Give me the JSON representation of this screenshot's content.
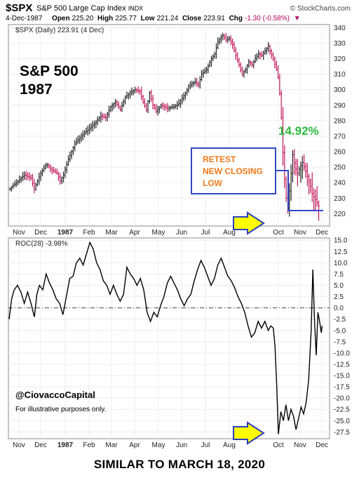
{
  "header": {
    "ticker": "$SPX",
    "index_name": "S&P 500 Large Cap Index",
    "exchange": "INDX",
    "brand": "© StockCharts.com",
    "date": "4-Dec-1987",
    "open_label": "Open",
    "open": "225.20",
    "high_label": "High",
    "high": "225.77",
    "low_label": "Low",
    "low": "221.24",
    "close_label": "Close",
    "close": "223.91",
    "chg_label": "Chg",
    "chg": "-1.30 (-0.58%)"
  },
  "colors": {
    "up": "#222222",
    "down": "#c2185b",
    "green": "#2db83d",
    "orange": "#f07a1a",
    "box": "#3247c7",
    "arrow_fill": "#ffff00",
    "arrow_stroke": "#2b3fbf"
  },
  "chart_data": [
    {
      "type": "ohlc",
      "legend": "$SPX (Daily) 223.91 (4 Dec)",
      "title": "S&P 500",
      "subtitle": "1987",
      "annotation_pct": "14.92%",
      "annotation_box": "RETEST NEW CLOSING LOW",
      "annotation_box_lines": [
        "RETEST",
        "NEW CLOSING",
        "LOW"
      ],
      "ylim": [
        212,
        342
      ],
      "yticks": [
        220,
        230,
        240,
        250,
        260,
        270,
        280,
        290,
        300,
        310,
        320,
        330,
        340
      ],
      "xticks": [
        "Nov",
        "Dec",
        "1987",
        "Feb",
        "Mar",
        "Apr",
        "May",
        "Jun",
        "Jul",
        "Aug",
        "Oct",
        "Nov",
        "Dec"
      ],
      "close_path": [
        [
          0,
          236
        ],
        [
          8,
          240
        ],
        [
          18,
          245
        ],
        [
          26,
          243
        ],
        [
          30,
          236
        ],
        [
          38,
          246
        ],
        [
          45,
          252
        ],
        [
          52,
          248
        ],
        [
          58,
          246
        ],
        [
          62,
          241
        ],
        [
          66,
          245
        ],
        [
          72,
          255
        ],
        [
          80,
          265
        ],
        [
          88,
          270
        ],
        [
          98,
          275
        ],
        [
          106,
          279
        ],
        [
          112,
          283
        ],
        [
          118,
          282
        ],
        [
          124,
          289
        ],
        [
          130,
          292
        ],
        [
          136,
          287
        ],
        [
          142,
          295
        ],
        [
          148,
          298
        ],
        [
          154,
          300
        ],
        [
          160,
          299
        ],
        [
          164,
          292
        ],
        [
          168,
          287
        ],
        [
          172,
          298
        ],
        [
          176,
          290
        ],
        [
          180,
          286
        ],
        [
          186,
          290
        ],
        [
          194,
          288
        ],
        [
          202,
          289
        ],
        [
          208,
          291
        ],
        [
          214,
          296
        ],
        [
          220,
          302
        ],
        [
          224,
          304
        ],
        [
          228,
          305
        ],
        [
          232,
          303
        ],
        [
          236,
          310
        ],
        [
          242,
          313
        ],
        [
          248,
          320
        ],
        [
          252,
          323
        ],
        [
          256,
          331
        ],
        [
          260,
          334
        ],
        [
          262,
          335
        ],
        [
          266,
          332
        ],
        [
          270,
          333
        ],
        [
          274,
          329
        ],
        [
          278,
          322
        ],
        [
          282,
          316
        ],
        [
          286,
          310
        ],
        [
          290,
          313
        ],
        [
          294,
          318
        ],
        [
          298,
          316
        ],
        [
          302,
          320
        ],
        [
          306,
          323
        ],
        [
          310,
          322
        ],
        [
          314,
          325
        ],
        [
          318,
          328
        ],
        [
          320,
          325
        ],
        [
          324,
          320
        ],
        [
          328,
          313
        ],
        [
          331,
          305
        ],
        [
          334,
          282
        ],
        [
          337,
          248
        ],
        [
          340,
          230
        ],
        [
          342,
          224
        ],
        [
          345,
          240
        ],
        [
          348,
          258
        ],
        [
          351,
          250
        ],
        [
          354,
          246
        ],
        [
          357,
          250
        ],
        [
          360,
          253
        ],
        [
          363,
          249
        ],
        [
          366,
          244
        ],
        [
          369,
          240
        ],
        [
          372,
          233
        ],
        [
          375,
          230
        ],
        [
          378,
          227
        ],
        [
          381,
          224
        ]
      ]
    },
    {
      "type": "line",
      "legend": "ROC(28) -3.98%",
      "ylim": [
        -29,
        15.5
      ],
      "yticks": [
        15.0,
        12.5,
        10.0,
        7.5,
        5.0,
        2.5,
        0.0,
        -2.5,
        -5.0,
        -7.5,
        -10.0,
        -12.5,
        -15.0,
        -17.5,
        -20.0,
        -22.5,
        -25.0,
        -27.5
      ],
      "ytick_labels": [
        "15.0",
        "12.5",
        "10.0",
        "7.5",
        "5.0",
        "2.5",
        "0.0",
        "-2.5",
        "-5.0",
        "-7.5",
        "-10.0",
        "-12.5",
        "-15.0",
        "-17.5",
        "-20.0",
        "-22.5",
        "-25.0",
        "-27.5"
      ],
      "xticks": [
        "Nov",
        "Dec",
        "1987",
        "Feb",
        "Mar",
        "Apr",
        "May",
        "Jun",
        "Jul",
        "Aug",
        "Oct",
        "Nov",
        "Dec"
      ],
      "series": [
        {
          "values": [
            [
              0,
              -2.5
            ],
            [
              3,
              2.0
            ],
            [
              6,
              4.0
            ],
            [
              10,
              5.0
            ],
            [
              14,
              3.5
            ],
            [
              18,
              1.0
            ],
            [
              22,
              3.5
            ],
            [
              26,
              1.0
            ],
            [
              30,
              -2.0
            ],
            [
              33,
              3.0
            ],
            [
              36,
              5.0
            ],
            [
              40,
              4.0
            ],
            [
              44,
              7.5
            ],
            [
              48,
              5.5
            ],
            [
              52,
              4.0
            ],
            [
              56,
              2.0
            ],
            [
              60,
              1.0
            ],
            [
              64,
              -1.5
            ],
            [
              68,
              2.5
            ],
            [
              72,
              6.5
            ],
            [
              76,
              7.0
            ],
            [
              80,
              10.0
            ],
            [
              84,
              11.0
            ],
            [
              88,
              9.5
            ],
            [
              92,
              12.0
            ],
            [
              96,
              14.5
            ],
            [
              100,
              13.0
            ],
            [
              104,
              10.0
            ],
            [
              108,
              8.5
            ],
            [
              112,
              6.0
            ],
            [
              116,
              5.0
            ],
            [
              120,
              3.0
            ],
            [
              124,
              5.0
            ],
            [
              128,
              3.0
            ],
            [
              132,
              1.5
            ],
            [
              136,
              3.0
            ],
            [
              140,
              9.0
            ],
            [
              144,
              7.5
            ],
            [
              148,
              6.5
            ],
            [
              152,
              5.0
            ],
            [
              156,
              6.5
            ],
            [
              160,
              4.0
            ],
            [
              164,
              -1.0
            ],
            [
              168,
              -3.0
            ],
            [
              172,
              -1.0
            ],
            [
              176,
              -2.0
            ],
            [
              180,
              0.5
            ],
            [
              184,
              2.5
            ],
            [
              188,
              5.5
            ],
            [
              192,
              7.0
            ],
            [
              196,
              5.5
            ],
            [
              200,
              4.0
            ],
            [
              204,
              2.0
            ],
            [
              208,
              0.5
            ],
            [
              212,
              2.0
            ],
            [
              216,
              3.0
            ],
            [
              220,
              6.0
            ],
            [
              224,
              8.5
            ],
            [
              228,
              10.5
            ],
            [
              232,
              9.0
            ],
            [
              236,
              7.0
            ],
            [
              240,
              5.0
            ],
            [
              244,
              6.5
            ],
            [
              248,
              9.5
            ],
            [
              252,
              11.0
            ],
            [
              256,
              9.0
            ],
            [
              260,
              7.0
            ],
            [
              264,
              6.0
            ],
            [
              268,
              4.5
            ],
            [
              272,
              2.5
            ],
            [
              276,
              1.0
            ],
            [
              280,
              -1.0
            ],
            [
              284,
              -4.0
            ],
            [
              288,
              -6.5
            ],
            [
              292,
              -5.5
            ],
            [
              296,
              -3.0
            ],
            [
              300,
              -4.5
            ],
            [
              304,
              -3.0
            ],
            [
              308,
              -5.0
            ],
            [
              311,
              -4.0
            ],
            [
              314,
              -4.5
            ],
            [
              316,
              -8.5
            ],
            [
              318,
              -17.0
            ],
            [
              320,
              -28.0
            ],
            [
              323,
              -23.0
            ],
            [
              326,
              -25.0
            ],
            [
              329,
              -21.5
            ],
            [
              332,
              -25.0
            ],
            [
              335,
              -22.5
            ],
            [
              338,
              -24.0
            ],
            [
              341,
              -27.0
            ],
            [
              344,
              -24.5
            ],
            [
              347,
              -22.0
            ],
            [
              350,
              -23.5
            ],
            [
              353,
              -21.0
            ],
            [
              356,
              -16.0
            ],
            [
              359,
              -5.0
            ],
            [
              361,
              8.5
            ],
            [
              363,
              -3.0
            ],
            [
              365,
              -10.5
            ],
            [
              367,
              -1.0
            ],
            [
              369,
              -3.0
            ],
            [
              371,
              -5.5
            ],
            [
              372,
              -3.98
            ]
          ]
        }
      ]
    }
  ],
  "watermark": {
    "handle": "@CiovaccoCapital",
    "note": "For illustrative purposes only."
  },
  "caption": "SIMILAR TO MARCH 18, 2020"
}
